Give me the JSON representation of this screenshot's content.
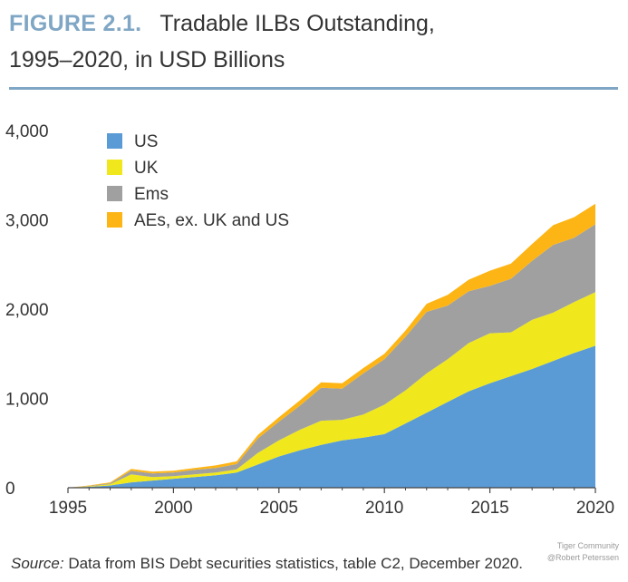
{
  "header": {
    "figure_label": "FIGURE 2.1.",
    "title_line1": "Tradable ILBs Outstanding,",
    "title_line2": "1995–2020, in USD Billions"
  },
  "colors": {
    "figure_label": "#7fa6c4",
    "rule": "#7fa6c4",
    "US": "#5b9bd5",
    "UK": "#f0e81c",
    "Ems": "#a0a0a0",
    "AEs": "#fdb515"
  },
  "chart_data": {
    "type": "area",
    "stacked": true,
    "x": [
      1995,
      1996,
      1997,
      1998,
      1999,
      2000,
      2001,
      2002,
      2003,
      2004,
      2005,
      2006,
      2007,
      2008,
      2009,
      2010,
      2011,
      2012,
      2013,
      2014,
      2015,
      2016,
      2017,
      2018,
      2019,
      2020
    ],
    "series": [
      {
        "name": "US",
        "color": "#5b9bd5",
        "values": [
          0,
          10,
          25,
          60,
          80,
          100,
          120,
          140,
          170,
          260,
          350,
          420,
          480,
          530,
          560,
          600,
          720,
          840,
          960,
          1080,
          1170,
          1250,
          1330,
          1420,
          1510,
          1590
        ]
      },
      {
        "name": "UK",
        "color": "#f0e81c",
        "values": [
          0,
          5,
          15,
          90,
          40,
          30,
          30,
          30,
          35,
          130,
          180,
          230,
          270,
          230,
          260,
          330,
          370,
          440,
          480,
          540,
          560,
          490,
          550,
          540,
          570,
          600
        ]
      },
      {
        "name": "Ems",
        "color": "#a0a0a0",
        "values": [
          0,
          5,
          10,
          40,
          40,
          40,
          50,
          50,
          60,
          160,
          210,
          270,
          370,
          350,
          460,
          510,
          600,
          690,
          600,
          580,
          530,
          600,
          660,
          760,
          720,
          760
        ]
      },
      {
        "name": "AEs, ex. UK and US",
        "color": "#fdb515",
        "values": [
          0,
          5,
          10,
          20,
          20,
          20,
          20,
          30,
          30,
          40,
          50,
          60,
          60,
          60,
          60,
          60,
          70,
          90,
          120,
          130,
          170,
          170,
          190,
          220,
          230,
          230
        ]
      }
    ],
    "ylim": [
      0,
      4000
    ],
    "xlim": [
      1995,
      2020
    ],
    "yticks": [
      "0",
      "1,000",
      "2,000",
      "3,000",
      "4,000"
    ],
    "xticks": [
      "1995",
      "2000",
      "2005",
      "2010",
      "2015",
      "2020"
    ],
    "legend_position": "top-left",
    "grid": false
  },
  "source": {
    "label": "Source:",
    "text": " Data from BIS Debt securities statistics, table C2, December 2020."
  },
  "watermark": {
    "line1": "Tiger Community",
    "line2": "@Robert Peterssen"
  }
}
